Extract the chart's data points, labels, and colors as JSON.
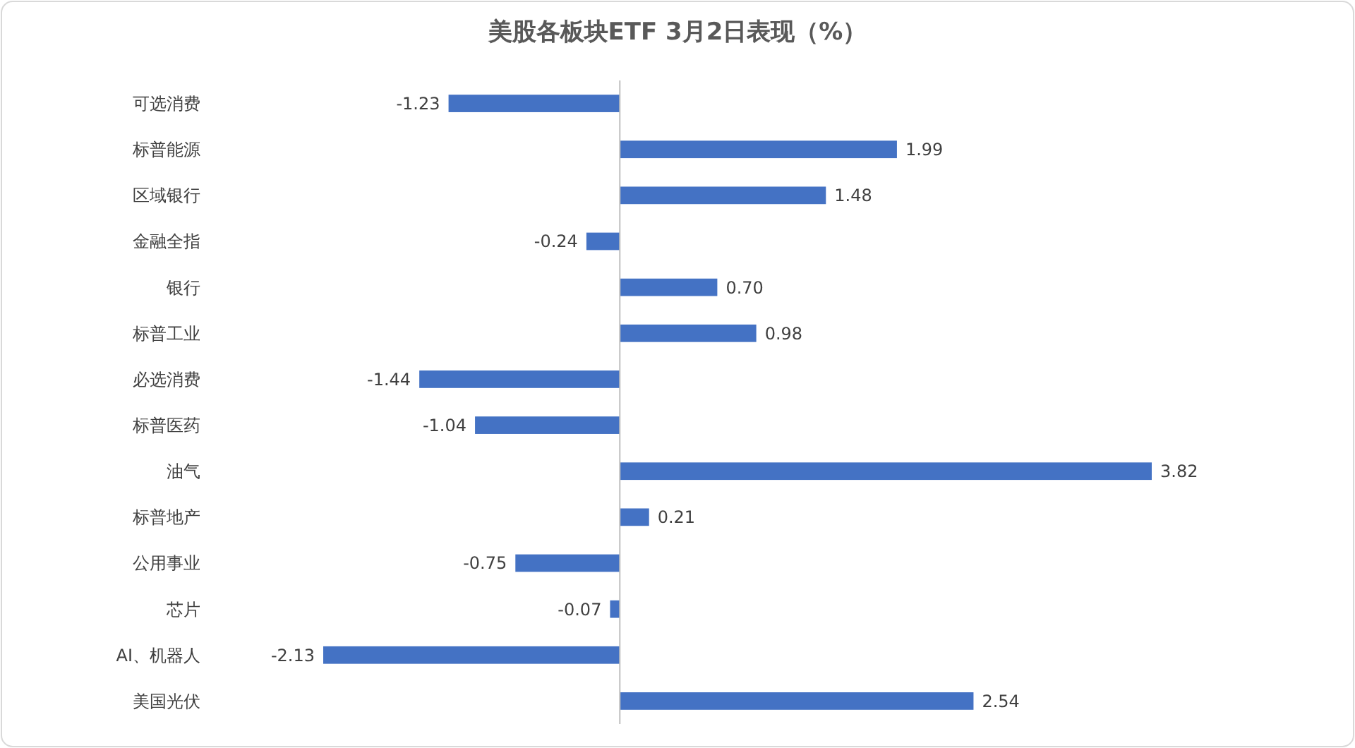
{
  "chart_data": {
    "type": "bar",
    "orientation": "horizontal",
    "title": "美股各板块ETF  3月2日表现（%）",
    "categories": [
      "可选消费",
      "标普能源",
      "区域银行",
      "金融全指",
      "银行",
      "标普工业",
      "必选消费",
      "标普医药",
      "油气",
      "标普地产",
      "公用事业",
      "芯片",
      "AI、机器人",
      "美国光伏"
    ],
    "values": [
      -1.23,
      1.99,
      1.48,
      -0.24,
      0.7,
      0.98,
      -1.44,
      -1.04,
      3.82,
      0.21,
      -0.75,
      -0.07,
      -2.13,
      2.54
    ],
    "value_labels": [
      "-1.23",
      "1.99",
      "1.48",
      "-0.24",
      "0.70",
      "0.98",
      "-1.44",
      "-1.04",
      "3.82",
      "0.21",
      "-0.75",
      "-0.07",
      "-2.13",
      "2.54"
    ],
    "color": "#4472c4"
  }
}
